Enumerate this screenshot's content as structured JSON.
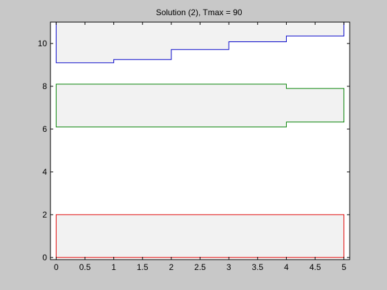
{
  "chart_data": {
    "type": "area",
    "title": "Solution (2), Tmax = 90",
    "xlabel": "",
    "ylabel": "",
    "xlim": [
      -0.1,
      5.1
    ],
    "ylim": [
      -0.1,
      11
    ],
    "xticks": [
      0,
      0.5,
      1,
      1.5,
      2,
      2.5,
      3,
      3.5,
      4,
      4.5,
      5
    ],
    "xtick_labels": [
      "0",
      "0.5",
      "1",
      "1.5",
      "2",
      "2.5",
      "3",
      "3.5",
      "4",
      "4.5",
      "5"
    ],
    "yticks": [
      0,
      2,
      4,
      6,
      8,
      10
    ],
    "ytick_labels": [
      "0",
      "2",
      "4",
      "6",
      "8",
      "10"
    ],
    "grid": false,
    "fill_color": "#f2f2f2",
    "series": [
      {
        "color": "#0000c8",
        "lower": {
          "x": [
            0,
            1,
            1,
            2,
            2,
            3,
            3,
            4,
            4,
            5
          ],
          "y": [
            9.1,
            9.1,
            9.25,
            9.25,
            9.72,
            9.72,
            10.08,
            10.08,
            10.35,
            10.35
          ]
        },
        "upper": {
          "x": [
            0,
            5
          ],
          "y": [
            11,
            11
          ]
        }
      },
      {
        "color": "#008000",
        "lower": {
          "x": [
            0,
            4,
            4,
            5
          ],
          "y": [
            6.1,
            6.1,
            6.33,
            6.33
          ]
        },
        "upper": {
          "x": [
            0,
            4,
            4,
            5
          ],
          "y": [
            8.1,
            8.1,
            7.9,
            7.9
          ]
        }
      },
      {
        "color": "#e00000",
        "lower": {
          "x": [
            0,
            5
          ],
          "y": [
            0,
            0
          ]
        },
        "upper": {
          "x": [
            0,
            5
          ],
          "y": [
            2,
            2
          ]
        }
      }
    ]
  }
}
